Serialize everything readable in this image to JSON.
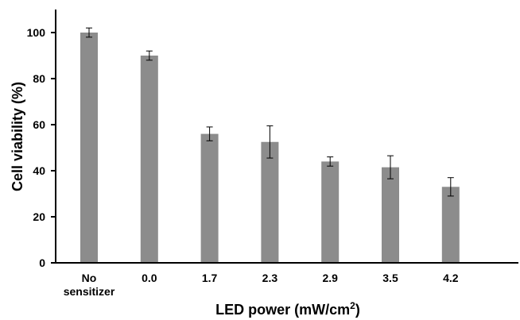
{
  "chart_data": {
    "type": "bar",
    "categories": [
      [
        "No",
        "sensitizer"
      ],
      [
        "0.0"
      ],
      [
        "1.7"
      ],
      [
        "2.3"
      ],
      [
        "2.9"
      ],
      [
        "3.5"
      ],
      [
        "4.2"
      ]
    ],
    "values": [
      100,
      90,
      56,
      52.5,
      44,
      41.5,
      33
    ],
    "errors": [
      2,
      2,
      3,
      7,
      2,
      5,
      4
    ],
    "xlabel": "LED power (mW/cm",
    "xlabel_superscript": "2",
    "xlabel_suffix": ")",
    "ylabel": "Cell viability (%)",
    "ylim": [
      0,
      110
    ],
    "yticks": [
      0,
      20,
      40,
      60,
      80,
      100
    ],
    "grid": false,
    "legend": "none",
    "bar_color": "#8c8c8c"
  }
}
